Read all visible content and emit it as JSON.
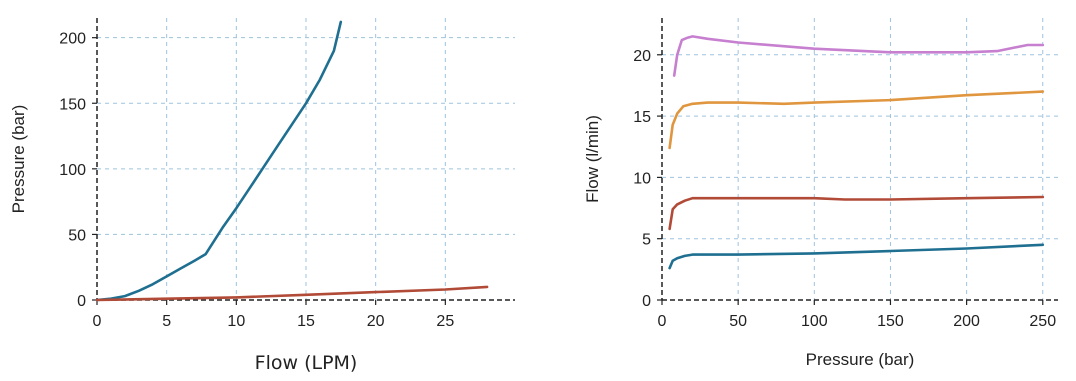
{
  "chart_data": [
    {
      "type": "line",
      "title": "",
      "xlabel": "Flow (LPM)",
      "ylabel": "Pressure (bar)",
      "xlim": [
        0,
        30
      ],
      "ylim": [
        0,
        215
      ],
      "xticks": [
        0,
        5,
        10,
        15,
        20,
        25
      ],
      "yticks": [
        0,
        50,
        100,
        150,
        200
      ],
      "grid": true,
      "series": [
        {
          "color": "#1f6f91",
          "x": [
            0,
            1,
            2,
            3,
            4,
            5,
            6,
            7,
            7.8,
            9,
            10,
            11,
            12,
            13,
            14,
            15,
            16,
            17,
            17.5
          ],
          "y": [
            0,
            1,
            3,
            7,
            12,
            18,
            24,
            30,
            35,
            55,
            70,
            86,
            102,
            118,
            134,
            150,
            168,
            190,
            212
          ]
        },
        {
          "color": "#b14a36",
          "x": [
            0,
            5,
            10,
            15,
            20,
            25,
            28
          ],
          "y": [
            0,
            1,
            2,
            4,
            6,
            8,
            10
          ]
        }
      ]
    },
    {
      "type": "line",
      "title": "",
      "xlabel": "Pressure (bar)",
      "ylabel": "Flow (l/min)",
      "xlim": [
        0,
        260
      ],
      "ylim": [
        0,
        23
      ],
      "xticks": [
        0,
        50,
        100,
        150,
        200,
        250
      ],
      "yticks": [
        0,
        5,
        10,
        15,
        20
      ],
      "grid": true,
      "series": [
        {
          "color": "#c77fcf",
          "x": [
            8,
            10,
            13,
            17,
            20,
            30,
            50,
            100,
            150,
            175,
            200,
            220,
            240,
            250
          ],
          "y": [
            18.3,
            20.0,
            21.2,
            21.4,
            21.5,
            21.3,
            21.0,
            20.5,
            20.2,
            20.2,
            20.2,
            20.3,
            20.8,
            20.8
          ]
        },
        {
          "color": "#e0963f",
          "x": [
            5,
            7,
            10,
            14,
            20,
            30,
            50,
            80,
            100,
            150,
            200,
            250
          ],
          "y": [
            12.4,
            14.3,
            15.2,
            15.8,
            16.0,
            16.1,
            16.1,
            16.0,
            16.1,
            16.3,
            16.7,
            17.0
          ]
        },
        {
          "color": "#b14a36",
          "x": [
            5,
            7,
            10,
            15,
            20,
            30,
            50,
            100,
            120,
            150,
            200,
            250
          ],
          "y": [
            5.8,
            7.4,
            7.8,
            8.1,
            8.3,
            8.3,
            8.3,
            8.3,
            8.2,
            8.2,
            8.3,
            8.4
          ]
        },
        {
          "color": "#1f6f91",
          "x": [
            5,
            7,
            10,
            15,
            20,
            50,
            100,
            150,
            200,
            250
          ],
          "y": [
            2.6,
            3.2,
            3.4,
            3.6,
            3.7,
            3.7,
            3.8,
            4.0,
            4.2,
            4.5
          ]
        }
      ]
    }
  ]
}
